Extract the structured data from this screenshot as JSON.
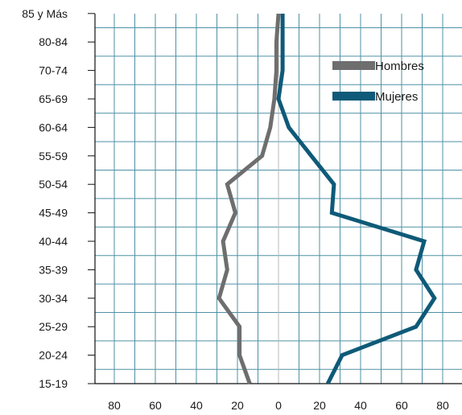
{
  "chart_data": {
    "type": "line",
    "orientation": "horizontal",
    "title": "",
    "xlabel": "",
    "ylabel": "",
    "categories": [
      "15-19",
      "20-24",
      "25-29",
      "30-34",
      "35-39",
      "40-44",
      "45-49",
      "50-54",
      "55-59",
      "60-64",
      "65-69",
      "70-74",
      "80-84",
      "85 y Más"
    ],
    "x_tick_labels": [
      "80",
      "60",
      "40",
      "20",
      "0",
      "20",
      "40",
      "60",
      "80"
    ],
    "x_tick_values": [
      -80,
      -60,
      -40,
      -20,
      0,
      20,
      40,
      60,
      80
    ],
    "xlim": [
      -90,
      90
    ],
    "grid": true,
    "legend_position": "top-right",
    "series": [
      {
        "name": "Hombres",
        "color": "#6e6e6e",
        "side": "left",
        "values": [
          14,
          19,
          19,
          29,
          25,
          27,
          21,
          25,
          8,
          4,
          2,
          1,
          1,
          0
        ]
      },
      {
        "name": "Mujeres",
        "color": "#0e5a78",
        "side": "right",
        "values": [
          24,
          31,
          67,
          76,
          67,
          71,
          26,
          27,
          16,
          5,
          0,
          2,
          2,
          2
        ]
      }
    ]
  },
  "colors": {
    "grid": "#4f90a6",
    "axis": "#111111",
    "zero_line": "#b9b9b9"
  }
}
